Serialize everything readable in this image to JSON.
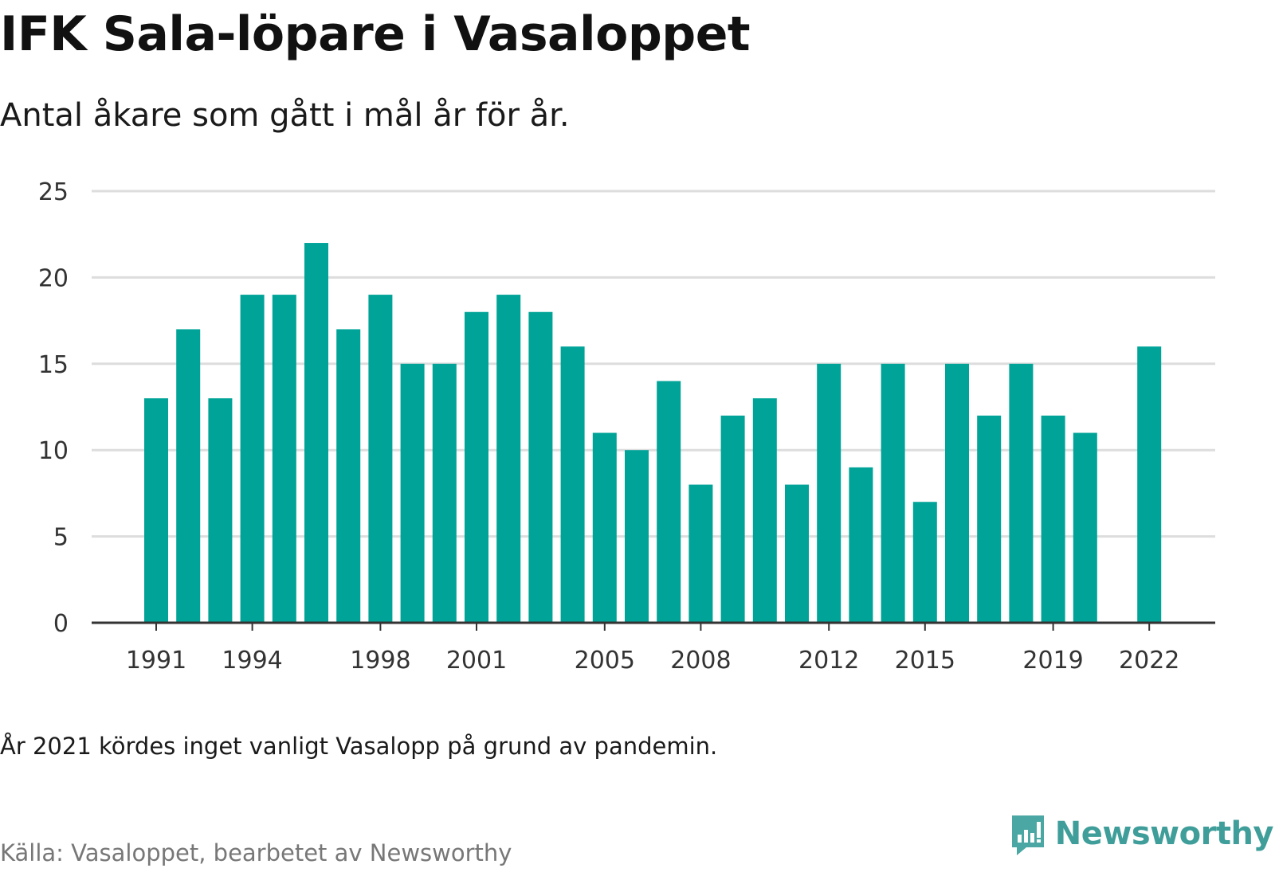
{
  "header": {
    "title": "IFK Sala-löpare i Vasaloppet",
    "subtitle": "Antal åkare som gått i mål år för år."
  },
  "footer": {
    "note": "År 2021 kördes inget vanligt Vasalopp på grund av pandemin.",
    "source": "Källa: Vasaloppet, bearbetet av Newsworthy",
    "brand": "Newsworthy",
    "brand_icon": "bar-chart-bubble-icon"
  },
  "colors": {
    "bar": "#00a398",
    "gridline": "#dddddd",
    "axis": "#333333",
    "brand": "#3f9e9a"
  },
  "chart_data": {
    "type": "bar",
    "title": "IFK Sala-löpare i Vasaloppet",
    "subtitle": "Antal åkare som gått i mål år för år.",
    "xlabel": "",
    "ylabel": "",
    "x": [
      1991,
      1992,
      1993,
      1994,
      1995,
      1996,
      1997,
      1998,
      1999,
      2000,
      2001,
      2002,
      2003,
      2004,
      2005,
      2006,
      2007,
      2008,
      2009,
      2010,
      2011,
      2012,
      2013,
      2014,
      2015,
      2016,
      2017,
      2018,
      2019,
      2020,
      2021,
      2022
    ],
    "values": [
      13,
      17,
      13,
      19,
      19,
      22,
      17,
      19,
      15,
      15,
      18,
      19,
      18,
      16,
      11,
      10,
      14,
      8,
      12,
      13,
      8,
      15,
      9,
      15,
      7,
      15,
      12,
      15,
      12,
      11,
      null,
      16
    ],
    "ylim": [
      0,
      25
    ],
    "yticks": [
      0,
      5,
      10,
      15,
      20,
      25
    ],
    "xticks": [
      1991,
      1994,
      1998,
      2001,
      2005,
      2008,
      2012,
      2015,
      2019,
      2022
    ],
    "grid": true,
    "legend": "none"
  }
}
